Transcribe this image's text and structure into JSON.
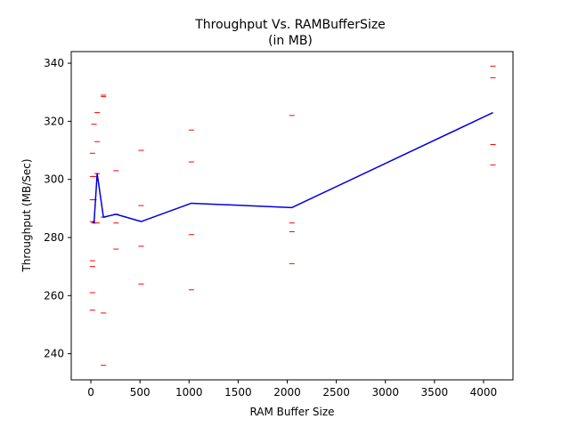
{
  "chart_data": {
    "type": "line",
    "title": [
      "Throughput Vs. RAMBufferSize",
      "(in MB)"
    ],
    "xlabel": "RAM Buffer Size",
    "ylabel": "Throughput (MB/Sec)",
    "xlim": [
      -200,
      4300
    ],
    "ylim": [
      231,
      344
    ],
    "xticks": [
      0,
      500,
      1000,
      1500,
      2000,
      2500,
      3000,
      3500,
      4000
    ],
    "yticks": [
      240,
      260,
      280,
      300,
      320,
      340
    ],
    "grid": false,
    "colors": {
      "line": "#0000dd",
      "markers": "#ff0000"
    },
    "series": [
      {
        "kind": "line",
        "x": [
          16,
          32,
          64,
          128,
          256,
          512,
          1024,
          2048,
          4096
        ],
        "y": [
          285.5,
          285.0,
          302.0,
          287.0,
          288.0,
          285.5,
          291.8,
          290.3,
          323.0
        ]
      },
      {
        "kind": "markers",
        "points": [
          [
            16,
            309
          ],
          [
            16,
            301
          ],
          [
            16,
            293
          ],
          [
            16,
            285.5
          ],
          [
            16,
            272
          ],
          [
            16,
            270
          ],
          [
            16,
            261
          ],
          [
            16,
            255
          ],
          [
            32,
            319
          ],
          [
            32,
            301
          ],
          [
            32,
            293
          ],
          [
            32,
            285
          ],
          [
            64,
            323
          ],
          [
            64,
            313
          ],
          [
            64,
            302
          ],
          [
            64,
            285
          ],
          [
            128,
            329
          ],
          [
            128,
            328.5
          ],
          [
            128,
            287
          ],
          [
            128,
            254
          ],
          [
            128,
            236
          ],
          [
            256,
            303
          ],
          [
            256,
            288
          ],
          [
            256,
            285
          ],
          [
            256,
            276
          ],
          [
            512,
            310
          ],
          [
            512,
            291
          ],
          [
            512,
            277
          ],
          [
            512,
            264
          ],
          [
            1024,
            317
          ],
          [
            1024,
            306
          ],
          [
            1024,
            281
          ],
          [
            1024,
            262
          ],
          [
            2048,
            322
          ],
          [
            2048,
            285
          ],
          [
            2048,
            282
          ],
          [
            2048,
            271
          ],
          [
            4096,
            339
          ],
          [
            4096,
            335
          ],
          [
            4096,
            312
          ],
          [
            4096,
            305
          ]
        ]
      }
    ]
  }
}
